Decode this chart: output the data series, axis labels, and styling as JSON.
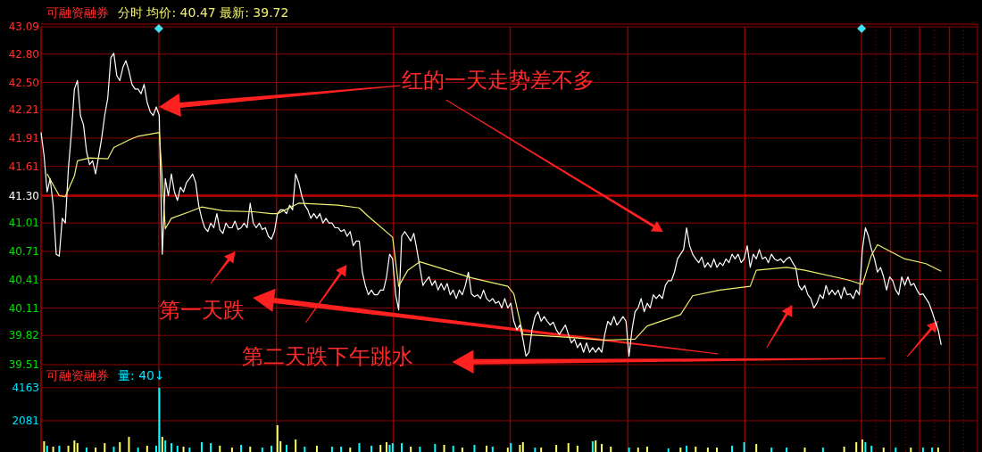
{
  "chart_data": [
    {
      "type": "line",
      "title": "可融资融券",
      "subtitle": "分时 均价: 40.47 最新: 39.72",
      "grid": true,
      "tick_labels": "y",
      "categories": [
        null,
        null,
        null,
        null,
        null,
        null,
        null,
        null,
        null,
        null,
        null,
        null,
        null,
        null,
        null,
        null,
        null,
        null,
        null,
        null,
        null,
        null,
        null,
        null,
        null,
        null,
        null,
        null,
        null,
        null,
        null,
        null,
        null,
        null,
        null,
        null,
        null,
        null,
        null,
        null,
        null,
        null,
        null,
        null,
        null,
        null,
        null,
        null,
        null,
        null,
        null,
        null,
        null,
        null,
        null,
        null,
        null,
        null,
        null,
        null,
        null,
        null,
        null,
        null,
        null,
        null,
        null,
        null,
        null,
        null,
        null,
        null,
        null,
        null,
        null,
        null,
        null,
        null,
        null,
        null,
        null,
        null,
        null,
        null,
        null,
        null,
        null,
        null,
        null,
        null,
        null,
        null,
        null,
        null,
        null,
        null,
        null,
        null,
        null,
        null,
        null,
        null,
        null,
        null,
        null,
        null,
        null,
        null,
        null,
        null,
        null,
        null,
        null,
        null,
        null,
        null,
        null,
        null,
        null,
        null,
        null,
        null,
        null,
        null,
        null,
        null,
        null,
        null,
        null,
        null,
        null,
        null,
        null,
        null,
        null,
        null,
        null,
        null,
        null,
        null,
        null,
        null,
        null,
        null,
        null,
        null,
        null,
        null,
        null,
        null,
        null,
        null,
        null,
        null,
        null,
        null,
        null,
        null,
        null,
        null,
        null,
        null,
        null,
        null,
        null,
        null,
        null,
        null,
        null,
        null,
        null,
        null,
        null,
        null,
        null,
        null,
        null,
        null,
        null,
        null,
        null,
        null,
        null,
        null,
        null,
        null,
        null,
        null,
        null,
        null,
        null,
        null,
        null,
        null,
        null,
        null,
        null,
        null,
        null,
        null,
        null,
        null,
        null,
        null,
        null,
        null,
        null,
        null,
        null,
        null,
        null,
        null,
        null,
        null,
        null,
        null,
        null,
        null,
        null,
        null,
        null,
        null,
        null,
        null,
        null,
        null,
        null,
        null,
        null,
        null,
        null,
        null,
        null,
        null,
        null,
        null,
        null,
        null,
        null,
        null,
        null,
        null,
        null,
        null,
        null,
        null,
        null,
        null,
        null,
        null,
        null,
        null,
        null,
        null,
        null,
        null,
        null,
        null,
        null,
        null,
        null,
        null,
        null,
        null,
        null,
        null,
        null,
        null,
        null,
        null,
        null,
        null,
        null,
        null,
        null,
        null,
        null,
        null,
        null,
        null,
        null,
        null,
        null,
        null,
        null,
        null,
        null,
        null,
        null,
        null,
        null,
        null,
        null,
        null,
        null,
        null,
        null,
        null,
        null,
        null,
        null,
        null,
        null,
        null,
        null,
        null,
        null,
        null,
        null,
        null
      ],
      "ylim": [
        39.51,
        43.09
      ],
      "yticks": [
        43.09,
        {
          "value": 42.8,
          "label": "42.80"
        },
        {
          "value": 42.5,
          "label": "42.50"
        },
        42.21,
        41.91,
        41.61,
        {
          "value": 41.3,
          "label": "41.30"
        },
        41.01,
        40.71,
        40.41,
        40.11,
        39.82,
        39.51
      ],
      "ref_lines": [
        {
          "axis": "y",
          "value": 41.3,
          "color": "#c00000",
          "line_style": "solid"
        }
      ],
      "annotations": [
        "红的一天走势差不多",
        "第一天跌",
        "第二天跌下午跳水"
      ],
      "series": [
        {
          "color": "#ffffff",
          "values": [
            41.97,
            41.72,
            41.34,
            41.48,
            41.2,
            40.68,
            40.66,
            41.06,
            41.01,
            41.58,
            41.96,
            42.43,
            42.52,
            42.15,
            42.05,
            41.77,
            41.63,
            41.67,
            41.53,
            41.72,
            41.91,
            42.15,
            42.33,
            42.76,
            42.81,
            42.57,
            42.52,
            42.66,
            42.73,
            42.62,
            42.48,
            42.43,
            42.43,
            42.38,
            42.48,
            42.29,
            42.19,
            42.15,
            42.24,
            42.15,
            40.68,
            41.48,
            41.3,
            41.53,
            41.34,
            41.25,
            41.39,
            41.34,
            41.44,
            41.48,
            41.53,
            41.44,
            41.2,
            41.06,
            40.96,
            40.92,
            41.01,
            40.96,
            41.11,
            40.94,
            40.9,
            41.01,
            40.96,
            40.96,
            41.03,
            40.94,
            40.96,
            41.01,
            40.96,
            41.22,
            41.01,
            40.96,
            41.01,
            40.94,
            40.96,
            40.87,
            40.84,
            40.92,
            41.11,
            41.15,
            41.15,
            41.11,
            41.2,
            41.15,
            41.53,
            41.44,
            41.3,
            41.2,
            41.15,
            41.06,
            41.11,
            41.06,
            41.11,
            41.01,
            41.06,
            41.01,
            41.01,
            40.96,
            40.96,
            40.92,
            40.94,
            40.87,
            40.92,
            40.77,
            40.82,
            40.82,
            40.49,
            40.35,
            40.25,
            40.3,
            40.25,
            40.25,
            40.3,
            40.3,
            40.44,
            40.68,
            40.63,
            40.25,
            40.09,
            40.87,
            40.92,
            40.87,
            40.82,
            40.9,
            40.73,
            40.54,
            40.35,
            40.4,
            40.44,
            40.35,
            40.4,
            40.3,
            40.37,
            40.3,
            40.37,
            40.25,
            40.3,
            40.21,
            40.3,
            40.25,
            40.35,
            40.49,
            40.26,
            40.23,
            40.25,
            40.21,
            40.3,
            40.21,
            40.18,
            40.21,
            40.16,
            40.18,
            40.11,
            40.21,
            40.11,
            40.16,
            39.97,
            39.88,
            39.93,
            39.78,
            39.6,
            39.64,
            39.88,
            40.02,
            40.07,
            39.97,
            40.02,
            39.97,
            39.93,
            39.96,
            39.88,
            39.83,
            39.88,
            39.93,
            39.83,
            39.74,
            39.78,
            39.69,
            39.74,
            39.64,
            39.74,
            39.64,
            39.69,
            39.64,
            39.69,
            39.64,
            39.83,
            39.97,
            39.93,
            40.02,
            39.93,
            39.97,
            40.02,
            39.97,
            39.6,
            39.88,
            40.07,
            40.11,
            40.21,
            40.07,
            40.16,
            40.11,
            40.25,
            40.21,
            40.25,
            40.21,
            40.35,
            40.4,
            40.4,
            40.49,
            40.63,
            40.68,
            40.73,
            40.96,
            40.77,
            40.68,
            40.63,
            40.59,
            40.65,
            40.54,
            40.59,
            40.54,
            40.63,
            40.54,
            40.59,
            40.56,
            40.63,
            40.59,
            40.68,
            40.63,
            40.68,
            40.59,
            40.63,
            40.77,
            40.54,
            40.68,
            40.63,
            40.73,
            40.63,
            40.65,
            40.59,
            40.68,
            40.63,
            40.61,
            40.63,
            40.59,
            40.63,
            40.65,
            40.59,
            40.54,
            40.35,
            40.3,
            40.35,
            40.25,
            40.21,
            40.11,
            40.16,
            40.25,
            40.21,
            40.35,
            40.25,
            40.3,
            40.25,
            40.3,
            40.21,
            40.33,
            40.25,
            40.26,
            40.21,
            40.3,
            40.25,
            40.73,
            40.96,
            40.87,
            40.73,
            40.63,
            40.49,
            40.54,
            40.44,
            40.3,
            40.44,
            40.4,
            40.3,
            40.25,
            40.44,
            40.35,
            40.44,
            40.35,
            40.37,
            40.3,
            40.25,
            40.26,
            40.21,
            40.16,
            40.07,
            39.97,
            39.88,
            39.72,
            null,
            null,
            null,
            null,
            null,
            null,
            null,
            null,
            null,
            null,
            null,
            null
          ]
        },
        {
          "color": "#f0f070",
          "values": [
            null,
            null,
            41.53,
            null,
            null,
            null,
            41.3,
            null,
            41.29,
            null,
            null,
            41.51,
            41.67,
            null,
            null,
            null,
            41.7,
            null,
            null,
            null,
            null,
            null,
            41.69,
            null,
            41.81,
            null,
            null,
            null,
            null,
            41.89,
            null,
            null,
            41.93,
            null,
            null,
            null,
            null,
            null,
            null,
            41.97,
            41.48,
            40.95,
            null,
            41.06,
            null,
            null,
            null,
            null,
            null,
            41.13,
            null,
            null,
            null,
            41.18,
            null,
            null,
            null,
            null,
            null,
            null,
            41.14,
            null,
            null,
            null,
            null,
            null,
            null,
            null,
            null,
            null,
            41.13,
            null,
            null,
            null,
            null,
            null,
            41.11,
            null,
            41.11,
            null,
            null,
            null,
            null,
            null,
            null,
            41.22,
            null,
            null,
            null,
            null,
            null,
            null,
            null,
            null,
            null,
            null,
            null,
            null,
            41.2,
            null,
            null,
            null,
            null,
            null,
            null,
            41.17,
            null,
            null,
            41.08,
            null,
            null,
            null,
            null,
            null,
            null,
            null,
            40.86,
            null,
            40.34,
            null,
            null,
            40.51,
            null,
            null,
            null,
            40.6,
            null,
            null,
            null,
            null,
            null,
            null,
            null,
            null,
            40.51,
            null,
            null,
            null,
            null,
            null,
            null,
            null,
            40.43,
            null,
            null,
            null,
            null,
            null,
            null,
            null,
            null,
            null,
            null,
            null,
            40.34,
            null,
            40.26,
            null,
            null,
            39.83,
            null,
            null,
            null,
            null,
            null,
            null,
            null,
            null,
            null,
            null,
            null,
            null,
            null,
            null,
            39.8,
            null,
            null,
            null,
            null,
            null,
            null,
            null,
            null,
            null,
            null,
            null,
            39.77,
            null,
            null,
            null,
            null,
            null,
            null,
            null,
            null,
            null,
            39.78,
            null,
            null,
            null,
            39.92,
            null,
            null,
            null,
            null,
            null,
            null,
            null,
            null,
            null,
            null,
            40.04,
            null,
            null,
            null,
            40.24,
            null,
            null,
            null,
            null,
            null,
            null,
            null,
            null,
            40.3,
            null,
            null,
            null,
            null,
            null,
            null,
            null,
            null,
            null,
            40.34,
            null,
            40.51,
            null,
            null,
            null,
            null,
            null,
            null,
            null,
            null,
            null,
            40.54,
            null,
            null,
            null,
            null,
            null,
            40.51,
            null,
            null,
            null,
            null,
            null,
            null,
            null,
            null,
            null,
            null,
            null,
            null,
            null,
            40.41,
            null,
            null,
            null,
            null,
            40.36,
            null,
            null,
            40.67,
            null,
            40.78,
            null,
            null,
            null,
            null,
            null,
            null,
            null,
            null,
            40.63,
            null,
            null,
            null,
            null,
            null,
            null,
            40.58,
            null,
            null,
            null,
            null,
            40.5,
            null,
            null,
            null,
            null,
            null,
            null,
            null,
            null,
            null,
            null,
            null,
            null
          ]
        }
      ]
    },
    {
      "type": "bar",
      "title": "可融资融券",
      "subtitle": "量: 40↓",
      "grid": true,
      "tick_labels": "y",
      "categories": [
        null,
        null,
        null,
        null,
        null,
        null,
        null,
        null,
        null,
        null,
        null,
        null,
        null,
        null,
        null,
        null,
        null,
        null,
        null,
        null,
        null,
        null,
        null,
        null,
        null,
        null,
        null,
        null,
        null,
        null,
        null,
        null,
        null,
        null,
        null,
        null,
        null,
        null,
        null,
        null,
        null,
        null,
        null,
        null,
        null,
        null,
        null,
        null,
        null,
        null,
        null,
        null,
        null,
        null,
        null,
        null,
        null,
        null,
        null,
        null,
        null,
        null,
        null,
        null,
        null,
        null,
        null,
        null,
        null,
        null,
        null,
        null,
        null,
        null,
        null,
        null,
        null,
        null,
        null,
        null,
        null,
        null,
        null,
        null,
        null,
        null,
        null,
        null,
        null,
        null,
        null,
        null,
        null,
        null,
        null,
        null,
        null,
        null,
        null,
        null,
        null,
        null,
        null,
        null,
        null,
        null,
        null,
        null,
        null,
        null,
        null,
        null,
        null,
        null,
        null,
        null,
        null,
        null,
        null,
        null,
        null,
        null,
        null,
        null,
        null,
        null,
        null,
        null,
        null,
        null,
        null,
        null,
        null,
        null,
        null,
        null,
        null,
        null,
        null,
        null,
        null,
        null,
        null,
        null,
        null,
        null,
        null,
        null,
        null,
        null,
        null,
        null,
        null,
        null,
        null,
        null,
        null,
        null,
        null,
        null,
        null,
        null,
        null,
        null,
        null,
        null,
        null,
        null,
        null,
        null,
        null,
        null,
        null,
        null,
        null,
        null,
        null,
        null,
        null,
        null,
        null,
        null,
        null,
        null,
        null,
        null,
        null,
        null,
        null,
        null,
        null,
        null,
        null,
        null,
        null,
        null,
        null,
        null,
        null,
        null,
        null,
        null,
        null,
        null,
        null,
        null,
        null,
        null,
        null,
        null,
        null,
        null,
        null,
        null,
        null,
        null,
        null,
        null,
        null,
        null,
        null,
        null,
        null,
        null,
        null,
        null,
        null,
        null,
        null,
        null,
        null,
        null,
        null,
        null,
        null,
        null,
        null,
        null,
        null,
        null,
        null,
        null,
        null,
        null,
        null,
        null,
        null,
        null,
        null,
        null,
        null,
        null,
        null,
        null,
        null,
        null,
        null,
        null,
        null,
        null,
        null,
        null,
        null,
        null,
        null,
        null,
        null,
        null,
        null,
        null,
        null,
        null,
        null,
        null,
        null,
        null,
        null,
        null,
        null,
        null,
        null,
        null,
        null,
        null,
        null,
        null,
        null,
        null,
        null,
        null,
        null,
        null,
        null,
        null,
        null,
        null,
        null,
        null,
        null,
        null,
        null,
        null,
        null,
        null,
        null,
        null,
        null,
        null,
        null,
        null
      ],
      "ylim": [
        0,
        5560
      ],
      "yticks": [
        4163,
        2081
      ],
      "series": [
        {
          "values": [
            null,
            790,
            510,
            null,
            450,
            null,
            510,
            null,
            null,
            510,
            null,
            840,
            670,
            null,
            null,
            390,
            null,
            null,
            390,
            null,
            null,
            670,
            null,
            null,
            450,
            null,
            730,
            null,
            null,
            1070,
            null,
            null,
            390,
            null,
            null,
            510,
            null,
            null,
            510,
            4160,
            1070,
            840,
            null,
            670,
            null,
            510,
            null,
            450,
            null,
            390,
            null,
            null,
            null,
            730,
            null,
            null,
            670,
            null,
            null,
            510,
            null,
            null,
            null,
            390,
            null,
            null,
            560,
            null,
            null,
            450,
            null,
            null,
            null,
            390,
            null,
            null,
            510,
            null,
            1800,
            790,
            null,
            560,
            null,
            null,
            900,
            null,
            null,
            450,
            null,
            null,
            null,
            510,
            null,
            null,
            null,
            null,
            450,
            null,
            null,
            450,
            null,
            null,
            390,
            null,
            null,
            670,
            null,
            null,
            null,
            510,
            null,
            null,
            560,
            null,
            730,
            560,
            670,
            null,
            null,
            670,
            null,
            null,
            450,
            null,
            null,
            450,
            null,
            null,
            null,
            null,
            620,
            null,
            null,
            560,
            null,
            null,
            510,
            null,
            null,
            390,
            null,
            null,
            null,
            560,
            null,
            null,
            null,
            510,
            null,
            450,
            null,
            null,
            null,
            null,
            390,
            670,
            null,
            null,
            560,
            730,
            null,
            null,
            null,
            390,
            null,
            390,
            null,
            null,
            null,
            null,
            560,
            null,
            null,
            null,
            670,
            null,
            null,
            510,
            null,
            null,
            null,
            null,
            790,
            840,
            null,
            620,
            null,
            null,
            450,
            null,
            null,
            null,
            null,
            null,
            390,
            null,
            null,
            390,
            null,
            null,
            450,
            null,
            null,
            null,
            null,
            null,
            null,
            340,
            null,
            null,
            null,
            390,
            null,
            510,
            null,
            null,
            450,
            null,
            null,
            null,
            390,
            null,
            null,
            390,
            null,
            null,
            null,
            null,
            510,
            null,
            null,
            null,
            730,
            null,
            null,
            null,
            620,
            null,
            null,
            null,
            null,
            390,
            null,
            null,
            null,
            null,
            390,
            null,
            null,
            null,
            null,
            null,
            390,
            null,
            null,
            null,
            null,
            null,
            390,
            null,
            null,
            null,
            null,
            null,
            null,
            450,
            null,
            null,
            null,
            730,
            null,
            900,
            730,
            null,
            510,
            null,
            null,
            null,
            390,
            null,
            null,
            null,
            390,
            null,
            null,
            null,
            null,
            390,
            null,
            null,
            null,
            390,
            null,
            null,
            390,
            null,
            390,
            null,
            null,
            null,
            null,
            null,
            null,
            null,
            null,
            null,
            null,
            null,
            null,
            null
          ],
          "colors": [
            null,
            "#ffff66",
            "#00ffff",
            null,
            "#ffff66",
            null,
            "#00ffff",
            null,
            null,
            "#ffff66",
            null,
            "#ffff66",
            "#ffff66",
            null,
            null,
            "#00ffff",
            null,
            null,
            "#ffff66",
            null,
            null,
            "#ffff66",
            null,
            null,
            "#00ffff",
            null,
            "#ffff66",
            null,
            null,
            "#ffff66",
            null,
            null,
            "#00ffff",
            null,
            null,
            "#ffff66",
            null,
            null,
            "#00ffff",
            "#00ffff",
            "#ffff66",
            "#00ffff",
            null,
            "#00ffff",
            null,
            "#00ffff",
            null,
            "#ffff66",
            null,
            "#00ffff",
            null,
            null,
            null,
            "#00ffff",
            null,
            null,
            "#00ffff",
            null,
            null,
            "#ffff66",
            null,
            null,
            null,
            "#ffff66",
            null,
            null,
            "#00ffff",
            null,
            null,
            "#ffff66",
            null,
            null,
            null,
            "#00ffff",
            null,
            null,
            "#00ffff",
            null,
            "#ffff66",
            "#ffff66",
            null,
            "#00ffff",
            null,
            null,
            "#ffff66",
            null,
            null,
            "#00ffff",
            null,
            null,
            null,
            "#ffff66",
            null,
            null,
            null,
            null,
            "#00ffff",
            null,
            null,
            "#00ffff",
            null,
            null,
            "#ffff66",
            null,
            null,
            "#00ffff",
            null,
            null,
            null,
            "#00ffff",
            null,
            null,
            "#ffff66",
            null,
            "#ffff66",
            "#00ffff",
            "#00ffff",
            null,
            null,
            "#00ffff",
            null,
            null,
            "#ffff66",
            null,
            null,
            "#00ffff",
            null,
            null,
            null,
            null,
            "#00ffff",
            null,
            null,
            "#ffff66",
            null,
            null,
            "#00ffff",
            null,
            null,
            "#ffff66",
            null,
            null,
            null,
            "#00ffff",
            null,
            null,
            null,
            "#ffff66",
            null,
            "#00ffff",
            null,
            null,
            null,
            null,
            "#ffff66",
            "#00ffff",
            null,
            null,
            "#ffff66",
            "#ffff66",
            null,
            null,
            null,
            "#00ffff",
            null,
            "#ffff66",
            null,
            null,
            null,
            null,
            "#ffff66",
            null,
            null,
            null,
            "#ffff66",
            null,
            null,
            "#ffff66",
            null,
            null,
            null,
            null,
            "#00ffff",
            "#ffff66",
            null,
            "#ffff66",
            null,
            null,
            "#ffff66",
            null,
            null,
            null,
            null,
            null,
            "#00ffff",
            null,
            null,
            "#ffff66",
            null,
            null,
            "#ffff66",
            null,
            null,
            null,
            null,
            null,
            null,
            "#00ffff",
            null,
            null,
            null,
            "#ffff66",
            null,
            "#00ffff",
            null,
            null,
            "#ffff66",
            null,
            null,
            null,
            "#ffff66",
            null,
            null,
            "#ffff66",
            null,
            null,
            null,
            null,
            "#00ffff",
            null,
            null,
            null,
            "#00ffff",
            null,
            null,
            null,
            "#ffff66",
            null,
            null,
            null,
            null,
            "#00ffff",
            null,
            null,
            null,
            null,
            "#00ffff",
            null,
            null,
            null,
            null,
            null,
            "#ffff66",
            null,
            null,
            null,
            null,
            null,
            "#00ffff",
            null,
            null,
            null,
            null,
            null,
            null,
            "#ffff66",
            null,
            null,
            null,
            "#ffff66",
            null,
            "#ffff66",
            "#00ffff",
            null,
            "#00ffff",
            null,
            null,
            null,
            "#ffff66",
            null,
            null,
            null,
            "#00ffff",
            null,
            null,
            null,
            null,
            "#ffff66",
            null,
            null,
            null,
            "#00ffff",
            null,
            null,
            "#00ffff",
            null,
            "#ffff66",
            null,
            null,
            null,
            null,
            null,
            null,
            null,
            null,
            null,
            null,
            null,
            null,
            null
          ]
        }
      ]
    }
  ]
}
